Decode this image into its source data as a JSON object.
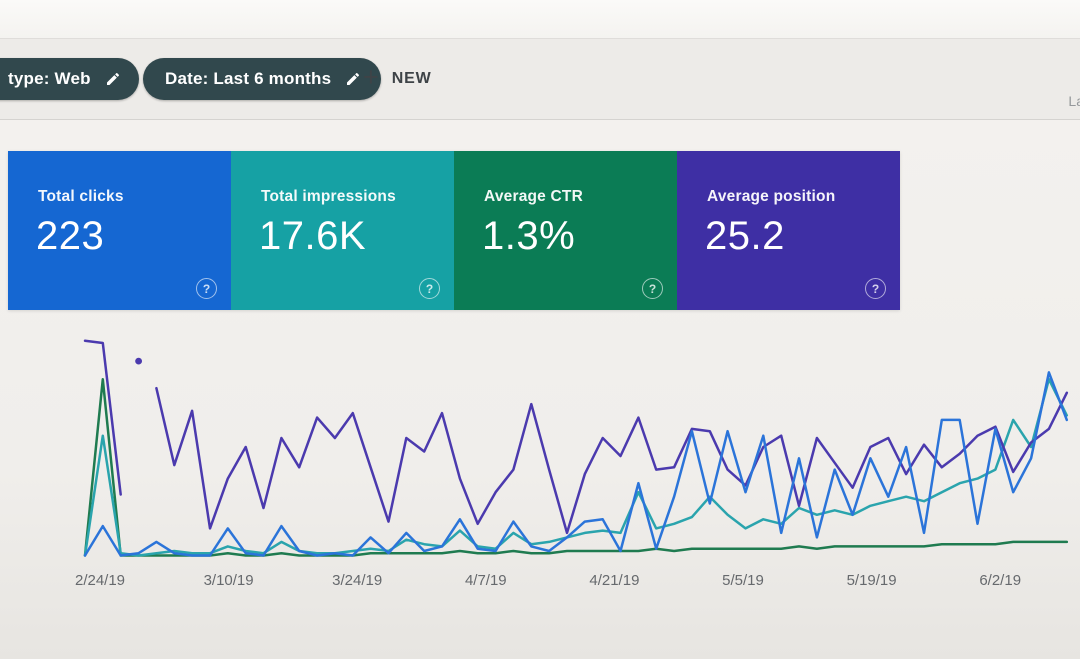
{
  "toolbar": {
    "chip_color": "#31484d",
    "filter_chips": [
      {
        "label": "type: Web"
      },
      {
        "label": "Date: Last 6 months"
      }
    ],
    "plus_glyph": "+",
    "new_button_label": "NEW",
    "right_partial_text": "La"
  },
  "icons": {
    "help_glyph": "?"
  },
  "cards": [
    {
      "label": "Total clicks",
      "value": "223",
      "color": "#1567d2"
    },
    {
      "label": "Total impressions",
      "value": "17.6K",
      "color": "#16a1a4"
    },
    {
      "label": "Average CTR",
      "value": "1.3%",
      "color": "#0b7c55"
    },
    {
      "label": "Average position",
      "value": "25.2",
      "color": "#3e2fa4"
    }
  ],
  "chart_data": {
    "type": "line",
    "title": "",
    "xlabel": "",
    "ylabel": "",
    "grid": false,
    "legend_position": "none",
    "x_labels": [
      "2/24/19",
      "3/10/19",
      "3/24/19",
      "4/7/19",
      "4/21/19",
      "5/5/19",
      "5/19/19",
      "6/2/19"
    ],
    "units_note": "series values estimated as percent of plot height (0 = baseline, 100 = top); no y-axis shown on screen",
    "series": [
      {
        "name": "CTR",
        "color": "#1f7b50",
        "values_pct": [
          2,
          80,
          2,
          2,
          2,
          2,
          2,
          2,
          3,
          2,
          2,
          3,
          2,
          2,
          2,
          2,
          3,
          3,
          3,
          3,
          3,
          4,
          3,
          3,
          4,
          3,
          3,
          4,
          4,
          4,
          4,
          4,
          5,
          4,
          5,
          5,
          5,
          5,
          5,
          5,
          6,
          5,
          6,
          6,
          6,
          6,
          6,
          6,
          7,
          7,
          7,
          7,
          8,
          8,
          8,
          8
        ]
      },
      {
        "name": "Impressions",
        "color": "#2aa4ad",
        "values_pct": [
          2,
          55,
          3,
          2,
          3,
          4,
          3,
          3,
          6,
          4,
          3,
          8,
          4,
          3,
          3,
          4,
          5,
          4,
          9,
          7,
          6,
          13,
          6,
          5,
          12,
          7,
          8,
          10,
          12,
          13,
          12,
          30,
          14,
          16,
          19,
          28,
          20,
          14,
          18,
          16,
          23,
          20,
          22,
          20,
          24,
          26,
          28,
          26,
          30,
          34,
          36,
          40,
          62,
          50,
          80,
          64
        ]
      },
      {
        "name": "Position",
        "color": "#4b3aae",
        "values_pct": [
          97,
          96,
          29,
          null,
          76,
          42,
          66,
          14,
          36,
          50,
          23,
          54,
          41,
          63,
          54,
          65,
          41,
          17,
          54,
          48,
          65,
          36,
          16,
          30,
          40,
          69,
          40,
          12,
          38,
          54,
          46,
          63,
          40,
          41,
          58,
          57,
          40,
          33,
          50,
          55,
          24,
          54,
          43,
          32,
          50,
          54,
          38,
          51,
          41,
          47,
          55,
          59,
          39,
          52,
          58,
          74
        ]
      },
      {
        "name": "Clicks",
        "color": "#2b74d9",
        "values_pct": [
          2,
          15,
          2,
          3,
          8,
          3,
          2,
          2,
          14,
          3,
          2,
          15,
          4,
          2,
          3,
          2,
          10,
          3,
          12,
          4,
          6,
          18,
          5,
          4,
          17,
          6,
          4,
          10,
          17,
          18,
          4,
          34,
          5,
          28,
          57,
          25,
          57,
          30,
          55,
          12,
          45,
          10,
          40,
          20,
          45,
          28,
          50,
          12,
          62,
          62,
          16,
          58,
          30,
          45,
          83,
          62
        ]
      }
    ],
    "detached_point": {
      "series": "Position",
      "index": 3,
      "value_pct": 88
    }
  }
}
